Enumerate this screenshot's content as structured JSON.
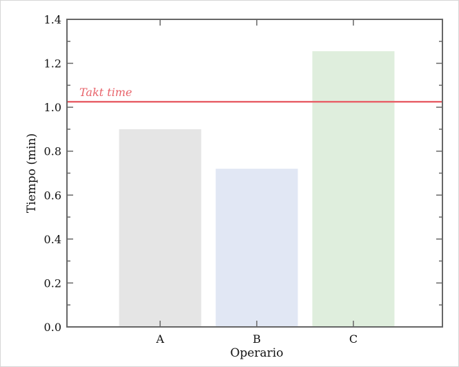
{
  "chart_data": {
    "type": "bar",
    "categories": [
      "A",
      "B",
      "C"
    ],
    "values": [
      0.9,
      0.72,
      1.255
    ],
    "bar_colors": [
      "#e5e5e5",
      "#e1e7f4",
      "#dfeedd"
    ],
    "xlabel": "Operario",
    "ylabel": "Tiempo (min)",
    "ylim": [
      0,
      1.4
    ],
    "yticks": [
      "0.0",
      "0.2",
      "0.4",
      "0.6",
      "0.8",
      "1.0",
      "1.2",
      "1.4"
    ],
    "reference_line": {
      "label": "Takt time",
      "value": 1.025,
      "color": "#e8636a"
    },
    "grid": false,
    "axis_color": "#666666"
  }
}
